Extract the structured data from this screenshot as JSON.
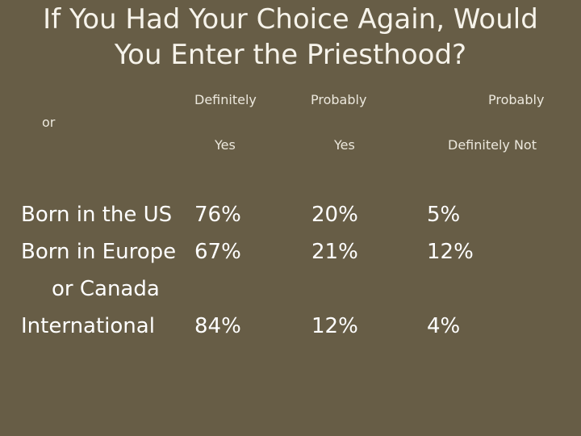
{
  "title": {
    "line1": "If You Had Your Choice Again, Would",
    "line2": "You Enter the Priesthood?"
  },
  "headers": {
    "col1_line1": "Definitely",
    "col1_line2": "Yes",
    "col2_line1": "Probably",
    "col2_line2": "Yes",
    "col3_line1": "Probably",
    "col3_line2": "Definitely Not",
    "or": "or"
  },
  "rows": [
    {
      "label": "Born in the US",
      "label_cont": "",
      "values": [
        "76%",
        "20%",
        "5%"
      ]
    },
    {
      "label": "Born in Europe",
      "label_cont": "or Canada",
      "values": [
        "67%",
        "21%",
        "12%"
      ]
    },
    {
      "label": "International",
      "label_cont": "",
      "values": [
        "84%",
        "12%",
        "4%"
      ]
    }
  ]
}
